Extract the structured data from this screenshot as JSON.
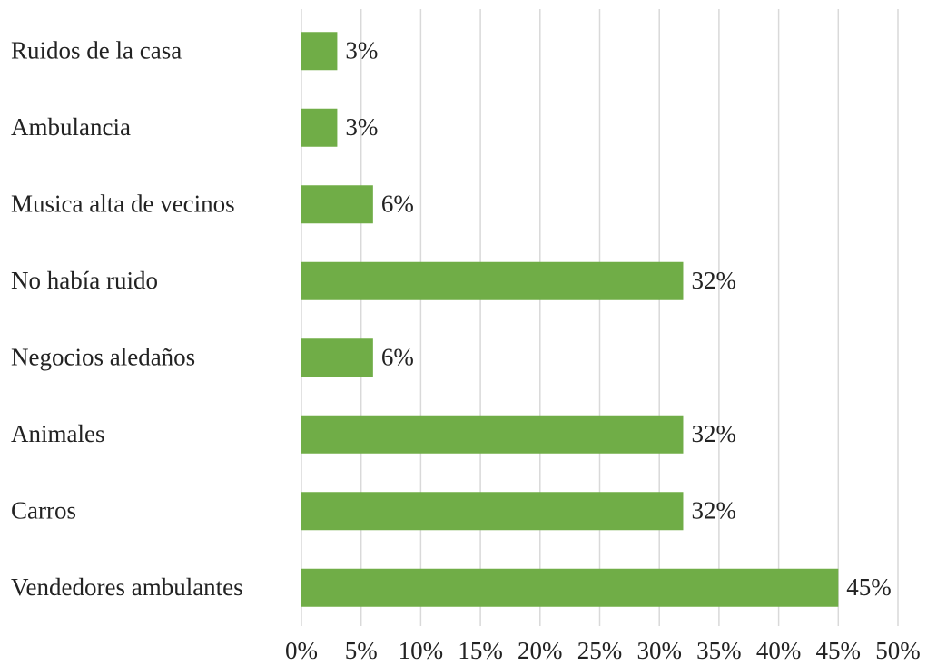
{
  "chart_data": {
    "type": "bar",
    "orientation": "horizontal",
    "categories": [
      "Ruidos de la casa",
      "Ambulancia",
      "Musica alta de vecinos",
      "No había ruido",
      "Negocios aledaños",
      "Animales",
      "Carros",
      "Vendedores ambulantes"
    ],
    "values": [
      3,
      3,
      6,
      32,
      6,
      32,
      32,
      45
    ],
    "value_labels": [
      "3%",
      "3%",
      "6%",
      "32%",
      "6%",
      "32%",
      "32%",
      "45%"
    ],
    "color": "#70ad47",
    "xlim": [
      0,
      50
    ],
    "xticks": [
      {
        "value": 0,
        "label": "0%"
      },
      {
        "value": 5,
        "label": "5%"
      },
      {
        "value": 10,
        "label": "10%"
      },
      {
        "value": 15,
        "label": "15%"
      },
      {
        "value": 20,
        "label": "20%"
      },
      {
        "value": 25,
        "label": "25%"
      },
      {
        "value": 30,
        "label": "30%"
      },
      {
        "value": 35,
        "label": "35%"
      },
      {
        "value": 40,
        "label": "40%"
      },
      {
        "value": 45,
        "label": "45%"
      },
      {
        "value": 50,
        "label": "50%"
      }
    ],
    "grid": true
  }
}
